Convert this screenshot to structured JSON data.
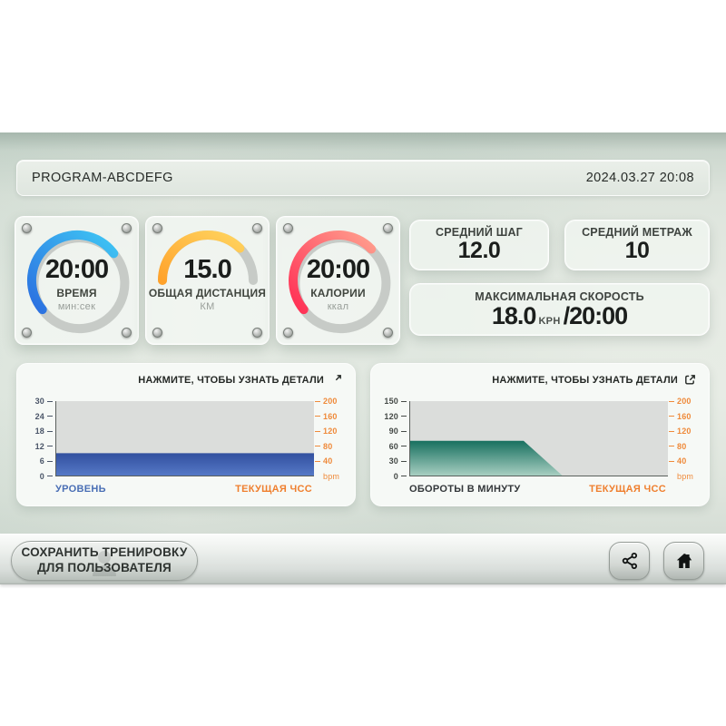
{
  "app": {
    "title": "PROGRAM-ABCDEFG",
    "datetime": "2024.03.27 20:08"
  },
  "gauges": [
    {
      "value": "20:00",
      "label": "ВРЕМЯ",
      "unit": "мин:сек",
      "shape": "ring",
      "percent": 51,
      "arc_colors": [
        "#2b6fe0",
        "#3fc6f4"
      ],
      "track_color": "#c7cbc7"
    },
    {
      "value": "15.0",
      "label": "ОБЩАЯ ДИСТАНЦИЯ",
      "unit": "КМ",
      "shape": "semi",
      "percent": 75,
      "arc_colors": [
        "#ffa22b",
        "#ffd35e"
      ],
      "track_color": "#c7cbc7"
    },
    {
      "value": "20:00",
      "label": "КАЛОРИИ",
      "unit": "ккал",
      "shape": "ring",
      "percent": 49,
      "arc_colors": [
        "#ff2e54",
        "#ff9f8e"
      ],
      "track_color": "#c7cbc7"
    }
  ],
  "stats": {
    "avg_step": {
      "label": "СРЕДНИЙ ШАГ",
      "value": "12.0"
    },
    "avg_meters": {
      "label": "СРЕДНИЙ МЕТРАЖ",
      "value": "10"
    },
    "max_speed": {
      "label": "МАКСИМАЛЬНАЯ СКОРОСТЬ",
      "value": "18.0",
      "unit": "KPH",
      "slash_value": "/20:00"
    }
  },
  "chart_data": [
    {
      "type": "area",
      "panel_title": "НАЖМИТЕ, ЧТОБЫ УЗНАТЬ ДЕТАЛИ",
      "left_axis": {
        "label": "УРОВЕНЬ",
        "ticks": [
          "30",
          "24",
          "18",
          "12",
          "6",
          "0"
        ],
        "range": [
          0,
          30
        ],
        "tick_color": "#4a5568",
        "label_color": "#4a6fb5"
      },
      "right_axis": {
        "label": "ТЕКУЩАЯ ЧСС",
        "ticks": [
          "200",
          "160",
          "120",
          "80",
          "40",
          "bpm"
        ],
        "range": [
          0,
          200
        ],
        "tick_color": "#ef8a3a",
        "label_color": "#ef7f2e"
      },
      "plot_bg": "#dbdddb",
      "grid": false,
      "legend": "none",
      "series": [
        {
          "name": "УРОВЕНЬ",
          "x_percent": [
            0,
            100
          ],
          "values": [
            9,
            9
          ],
          "fill_top": "#32509f",
          "fill_bottom": "#5578c6"
        }
      ]
    },
    {
      "type": "area",
      "panel_title": "НАЖМИТЕ, ЧТОБЫ УЗНАТЬ ДЕТАЛИ",
      "left_axis": {
        "label": "ОБОРОТЫ В МИНУТУ",
        "ticks": [
          "150",
          "120",
          "90",
          "60",
          "30",
          "0"
        ],
        "range": [
          0,
          150
        ],
        "tick_color": "#454a47",
        "label_color": "#33373a"
      },
      "right_axis": {
        "label": "ТЕКУЩАЯ ЧСС",
        "ticks": [
          "200",
          "160",
          "120",
          "80",
          "40",
          "bpm"
        ],
        "range": [
          0,
          200
        ],
        "tick_color": "#ef8a3a",
        "label_color": "#ef7f2e"
      },
      "plot_bg": "#dbdddb",
      "grid": false,
      "legend": "none",
      "series": [
        {
          "name": "ОБОРОТЫ В МИНУТУ",
          "x_percent": [
            0,
            44,
            59,
            100
          ],
          "values": [
            70,
            70,
            0,
            0
          ],
          "fill_top": "#17705f",
          "fill_bottom": "#a7cec1"
        }
      ]
    }
  ],
  "footer": {
    "save_line1": "СОХРАНИТЬ ТРЕНИРОВКУ",
    "save_line2": "ДЛЯ ПОЛЬЗОВАТЕЛЯ",
    "icons": [
      "share-icon",
      "home-icon"
    ]
  }
}
